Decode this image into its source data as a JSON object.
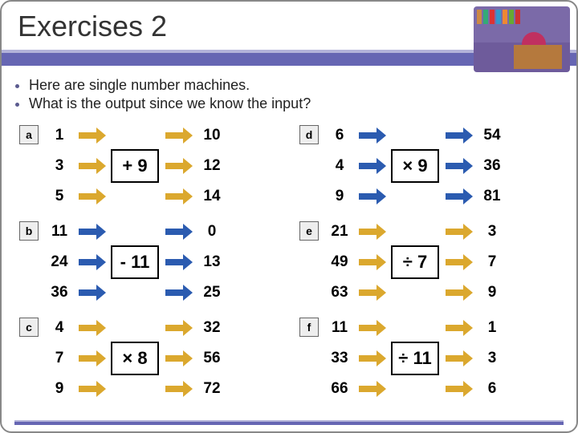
{
  "title": "Exercises 2",
  "bullets": [
    "Here are single number machines.",
    "What is the output since we know the input?"
  ],
  "colors": {
    "bar": "#6666b3",
    "bar_highlight": "#b3b3d9",
    "arrow_orange": "#dba82e",
    "arrow_blue": "#2b5bb0",
    "label_bg": "#eeeeee",
    "text": "#222222"
  },
  "machines": [
    {
      "label": "a",
      "op": "+ 9",
      "arrow": "orange",
      "rows": [
        {
          "in": "1",
          "out": "10"
        },
        {
          "in": "3",
          "out": "12"
        },
        {
          "in": "5",
          "out": "14"
        }
      ]
    },
    {
      "label": "d",
      "op": "× 9",
      "arrow": "blue",
      "rows": [
        {
          "in": "6",
          "out": "54"
        },
        {
          "in": "4",
          "out": "36"
        },
        {
          "in": "9",
          "out": "81"
        }
      ]
    },
    {
      "label": "b",
      "op": "- 11",
      "arrow": "blue",
      "rows": [
        {
          "in": "11",
          "out": "0"
        },
        {
          "in": "24",
          "out": "13"
        },
        {
          "in": "36",
          "out": "25"
        }
      ]
    },
    {
      "label": "e",
      "op": "÷ 7",
      "arrow": "orange",
      "rows": [
        {
          "in": "21",
          "out": "3"
        },
        {
          "in": "49",
          "out": "7"
        },
        {
          "in": "63",
          "out": "9"
        }
      ]
    },
    {
      "label": "c",
      "op": "× 8",
      "arrow": "orange",
      "rows": [
        {
          "in": "4",
          "out": "32"
        },
        {
          "in": "7",
          "out": "56"
        },
        {
          "in": "9",
          "out": "72"
        }
      ]
    },
    {
      "label": "f",
      "op": "÷ 11",
      "arrow": "orange",
      "rows": [
        {
          "in": "11",
          "out": "1"
        },
        {
          "in": "33",
          "out": "3"
        },
        {
          "in": "66",
          "out": "6"
        }
      ]
    }
  ]
}
